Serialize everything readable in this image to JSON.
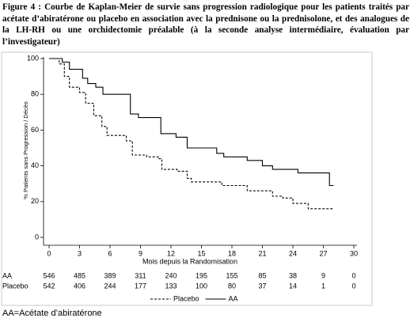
{
  "chart_data": {
    "type": "line",
    "title": "Figure 4 : Courbe de Kaplan-Meier de survie sans progression radiologique pour les patients traités par acétate d’abiratérone ou placebo en association avec la prednisone ou la prednisolone, et des analogues de la LH-RH ou une orchidectomie préalable (à la seconde analyse intermédiaire, évaluation par l’investigateur)",
    "y_label": "% Patients sans Progression / Décès",
    "x_label": "Mois depuis la Randomisation",
    "xlim": [
      0,
      30
    ],
    "xticks": [
      0,
      3,
      6,
      9,
      12,
      15,
      18,
      21,
      24,
      27,
      30
    ],
    "ylim": [
      0,
      100
    ],
    "yticks": [
      0,
      20,
      40,
      60,
      80,
      100
    ],
    "series": [
      {
        "name": "Placebo",
        "color": "#000000",
        "dash": "dashed",
        "x": [
          0,
          1,
          1,
          1.5,
          1.5,
          2,
          2,
          3,
          3,
          3.6,
          3.6,
          4.4,
          4.4,
          5.2,
          5.2,
          5.7,
          5.7,
          7.6,
          7.6,
          8.2,
          8.2,
          9.6,
          9.6,
          10.8,
          10.8,
          11.1,
          11.1,
          12.6,
          12.6,
          13.6,
          13.6,
          14,
          14,
          17,
          17,
          19.5,
          19.5,
          22,
          22,
          23,
          23,
          24,
          24,
          25.5,
          25.5,
          28
        ],
        "values": [
          100,
          100,
          97,
          97,
          90,
          90,
          84,
          84,
          81,
          81,
          75,
          75,
          68,
          68,
          62,
          62,
          57,
          57,
          54,
          54,
          46,
          46,
          45,
          45,
          44,
          44,
          38,
          38,
          37,
          37,
          33,
          33,
          31,
          31,
          29,
          29,
          26,
          26,
          23,
          23,
          22,
          22,
          19,
          19,
          16,
          16
        ]
      },
      {
        "name": "AA",
        "color": "#000000",
        "dash": "solid",
        "x": [
          0,
          1.3,
          1.3,
          2,
          2,
          3.3,
          3.3,
          3.8,
          3.8,
          4.6,
          4.6,
          5.3,
          5.3,
          8,
          8,
          8.8,
          8.8,
          11,
          11,
          12.5,
          12.5,
          13.6,
          13.6,
          16.5,
          16.5,
          17.2,
          17.2,
          19.5,
          19.5,
          21,
          21,
          22,
          22,
          24.5,
          24.5,
          27.6,
          27.6,
          28
        ],
        "values": [
          100,
          100,
          98,
          98,
          94,
          94,
          89,
          89,
          86,
          86,
          84,
          84,
          80,
          80,
          69,
          69,
          67,
          67,
          58,
          58,
          56,
          56,
          50,
          50,
          47,
          47,
          45,
          45,
          43,
          43,
          40,
          40,
          38,
          38,
          36,
          36,
          29,
          29
        ]
      }
    ],
    "at_risk": [
      {
        "name": "AA",
        "values": [
          546,
          485,
          389,
          311,
          240,
          195,
          155,
          85,
          38,
          9,
          0
        ]
      },
      {
        "name": "Placebo",
        "values": [
          542,
          406,
          244,
          177,
          133,
          100,
          80,
          37,
          14,
          1,
          0
        ]
      }
    ]
  },
  "footer": "AA=Acétate d’abiratérone"
}
